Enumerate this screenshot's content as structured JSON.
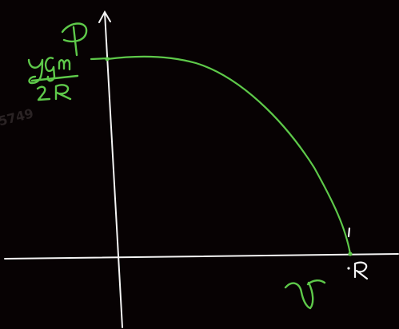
{
  "watermark": "5749",
  "labels": {
    "y_axis": "P",
    "y_value_numerator": "ƔGm",
    "y_value_denominator": "2R",
    "x_axis": "r",
    "x_value": "R"
  },
  "colors": {
    "background": "#070203",
    "axes": "#f4f4f4",
    "curve": "#5ec94a"
  }
}
